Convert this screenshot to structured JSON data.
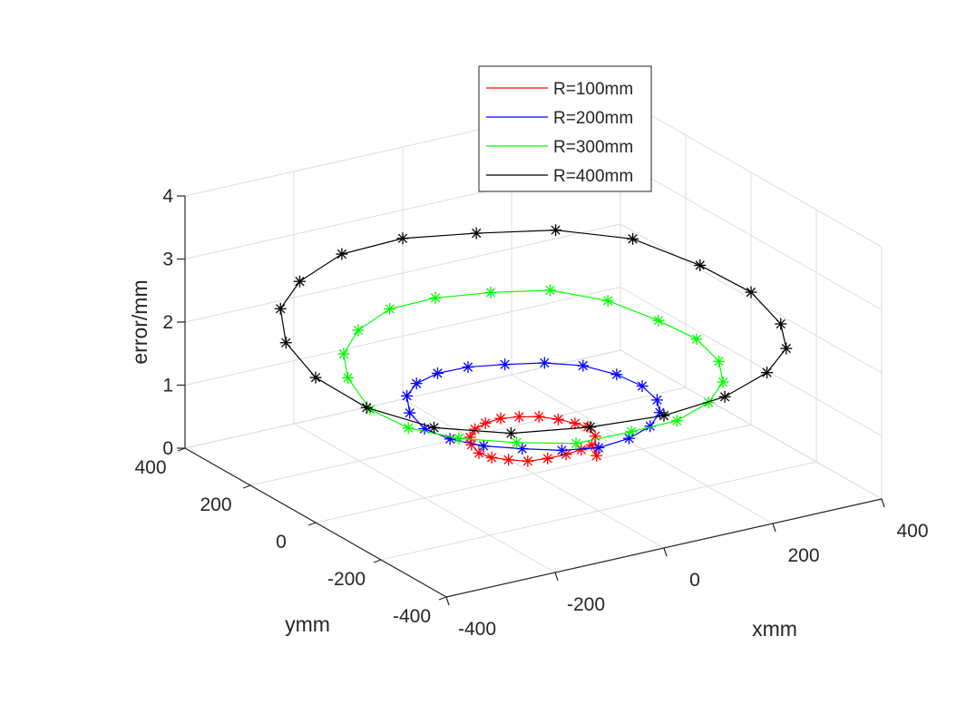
{
  "chart_data": {
    "type": "line",
    "subtype": "3d-line-with-markers",
    "marker": "asterisk",
    "title": "",
    "xlabel": "xmm",
    "ylabel": "ymm",
    "zlabel": "error/mm",
    "xlim": [
      -400,
      400
    ],
    "ylim": [
      -400,
      400
    ],
    "zlim": [
      0,
      4
    ],
    "xticks": [
      -400,
      -200,
      0,
      200,
      400
    ],
    "yticks": [
      -400,
      -200,
      0,
      200,
      400
    ],
    "zticks": [
      0,
      1,
      2,
      3,
      4
    ],
    "xtick_labels": [
      "-400",
      "-200",
      "0",
      "200",
      "400"
    ],
    "ytick_labels": [
      "-400",
      "-200",
      "0",
      "200",
      "400"
    ],
    "ztick_labels": [
      "0",
      "1",
      "2",
      "3",
      "4"
    ],
    "grid": true,
    "legend_position": "top-right",
    "series": [
      {
        "name": "R=100mm",
        "color": "#ff0000",
        "radius": 100,
        "x": [
          100.0,
          95.1,
          80.9,
          58.8,
          30.9,
          0.0,
          -30.9,
          -58.8,
          -80.9,
          -95.1,
          -100.0,
          -95.1,
          -80.9,
          -58.8,
          -30.9,
          0.0,
          30.9,
          58.8,
          80.9,
          95.1
        ],
        "y": [
          0.0,
          30.9,
          58.8,
          80.9,
          95.1,
          100.0,
          95.1,
          80.9,
          58.8,
          30.9,
          0.0,
          -30.9,
          -58.8,
          -80.9,
          -95.1,
          -100.0,
          -95.1,
          -80.9,
          -58.8,
          -30.9
        ],
        "z": [
          0.55,
          0.52,
          0.53,
          0.55,
          0.56,
          0.58,
          0.58,
          0.58,
          0.56,
          0.55,
          0.52,
          0.53,
          0.55,
          0.55,
          0.58,
          0.6,
          0.6,
          0.58,
          0.3,
          0.5
        ]
      },
      {
        "name": "R=200mm",
        "color": "#0000ff",
        "radius": 200,
        "x": [
          200.0,
          190.2,
          161.8,
          117.6,
          61.8,
          0.0,
          -61.8,
          -117.6,
          -161.8,
          -190.2,
          -200.0,
          -190.2,
          -161.8,
          -117.6,
          -61.8,
          0.0,
          61.8,
          117.6,
          161.8,
          190.2
        ],
        "y": [
          0.0,
          61.8,
          117.6,
          161.8,
          190.2,
          200.0,
          190.2,
          161.8,
          117.6,
          61.8,
          0.0,
          -61.8,
          -117.6,
          -161.8,
          -190.2,
          -200.0,
          -190.2,
          -161.8,
          -117.6,
          -61.8
        ],
        "z": [
          1.0,
          1.02,
          1.05,
          1.05,
          1.05,
          1.1,
          1.15,
          1.18,
          1.2,
          1.15,
          1.1,
          1.1,
          1.1,
          1.1,
          1.05,
          1.0,
          1.0,
          1.0,
          1.0,
          0.98
        ]
      },
      {
        "name": "R=300mm",
        "color": "#00ff00",
        "radius": 300,
        "x": [
          300.0,
          285.3,
          242.7,
          176.3,
          92.7,
          0.0,
          -92.7,
          -176.3,
          -242.7,
          -285.3,
          -300.0,
          -285.3,
          -242.7,
          -176.3,
          -92.7,
          0.0,
          92.7,
          176.3,
          242.7,
          285.3
        ],
        "y": [
          0.0,
          92.7,
          176.3,
          242.7,
          285.3,
          300.0,
          285.3,
          242.7,
          176.3,
          92.7,
          0.0,
          -92.7,
          -176.3,
          -242.7,
          -285.3,
          -300.0,
          -285.3,
          -242.7,
          -176.3,
          -92.7
        ],
        "z": [
          1.55,
          1.6,
          1.75,
          1.85,
          1.85,
          1.9,
          1.95,
          1.9,
          1.85,
          1.8,
          1.6,
          1.55,
          1.55,
          1.55,
          1.5,
          1.55,
          1.5,
          1.5,
          1.5,
          1.5
        ]
      },
      {
        "name": "R=400mm",
        "color": "#000000",
        "radius": 400,
        "x": [
          400.0,
          380.4,
          323.6,
          235.1,
          123.6,
          0.0,
          -123.6,
          -235.1,
          -323.6,
          -380.4,
          -400.0,
          -380.4,
          -323.6,
          -235.1,
          -123.6,
          0.0,
          123.6,
          235.1,
          323.6,
          380.4
        ],
        "y": [
          0.0,
          123.6,
          235.1,
          323.6,
          380.4,
          400.0,
          380.4,
          323.6,
          235.1,
          123.6,
          0.0,
          -123.6,
          -235.1,
          -323.6,
          -380.4,
          -400.0,
          -380.4,
          -323.6,
          -235.1,
          -123.6
        ],
        "z": [
          2.1,
          2.2,
          2.4,
          2.45,
          2.45,
          2.55,
          2.6,
          2.55,
          2.55,
          2.45,
          2.3,
          2.15,
          2.05,
          2.05,
          2.1,
          2.1,
          2.1,
          2.1,
          2.05,
          2.0
        ]
      }
    ]
  }
}
